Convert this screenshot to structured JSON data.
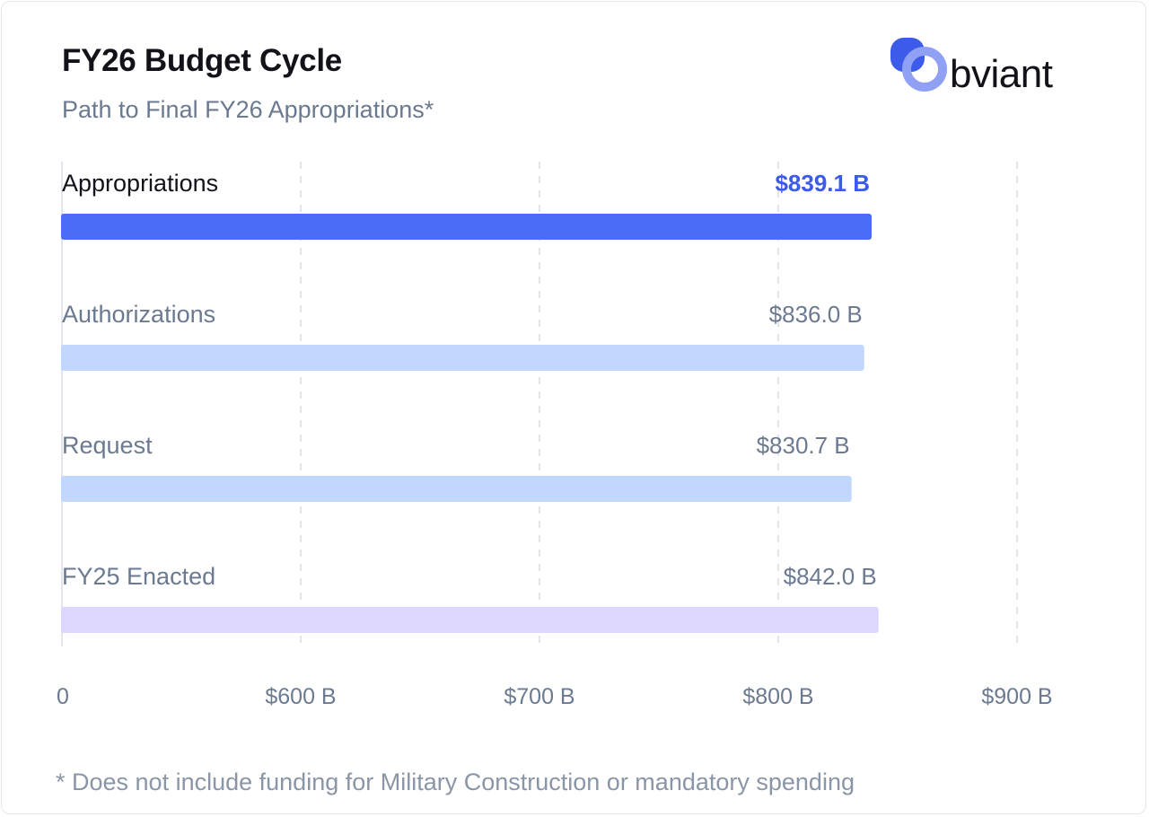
{
  "header": {
    "title": "FY26 Budget Cycle",
    "subtitle": "Path to Final FY26 Appropriations*"
  },
  "logo": {
    "text": "bviant",
    "full_name": "Obviant",
    "colors": {
      "dark": "#3b5be8",
      "light": "#8fa0f5"
    }
  },
  "footnote": "* Does not include funding for Military Construction or mandatory spending",
  "colors": {
    "highlight_bar": "#4a6cf7",
    "highlight_label": "#3b5be8",
    "normal_bar": "#c2d7fd",
    "enacted_bar": "#ddd6fd",
    "muted_text": "#6b7a90",
    "dark_text": "#111318",
    "grid": "#e2e6ec"
  },
  "chart_data": {
    "type": "bar",
    "orientation": "horizontal",
    "title": "FY26 Budget Cycle",
    "subtitle": "Path to Final FY26 Appropriations*",
    "categories": [
      "Appropriations",
      "Authorizations",
      "Request",
      "FY25 Enacted"
    ],
    "values": [
      839.1,
      836.0,
      830.7,
      842.0
    ],
    "value_labels": [
      "$839.1 B",
      "$836.0 B",
      "$830.7 B",
      "$842.0 B"
    ],
    "highlight": [
      "Appropriations"
    ],
    "bar_styles": [
      "highlight",
      "normal",
      "normal",
      "enacted"
    ],
    "x_axis": {
      "tick_values": [
        0,
        600,
        700,
        800,
        900
      ],
      "tick_labels": [
        "0",
        "$600 B",
        "$700 B",
        "$800 B",
        "$900 B"
      ],
      "note": "broken axis between 0 and $600 B"
    },
    "unit": "$ billions",
    "grid": true,
    "xlabel": "",
    "ylabel": ""
  }
}
